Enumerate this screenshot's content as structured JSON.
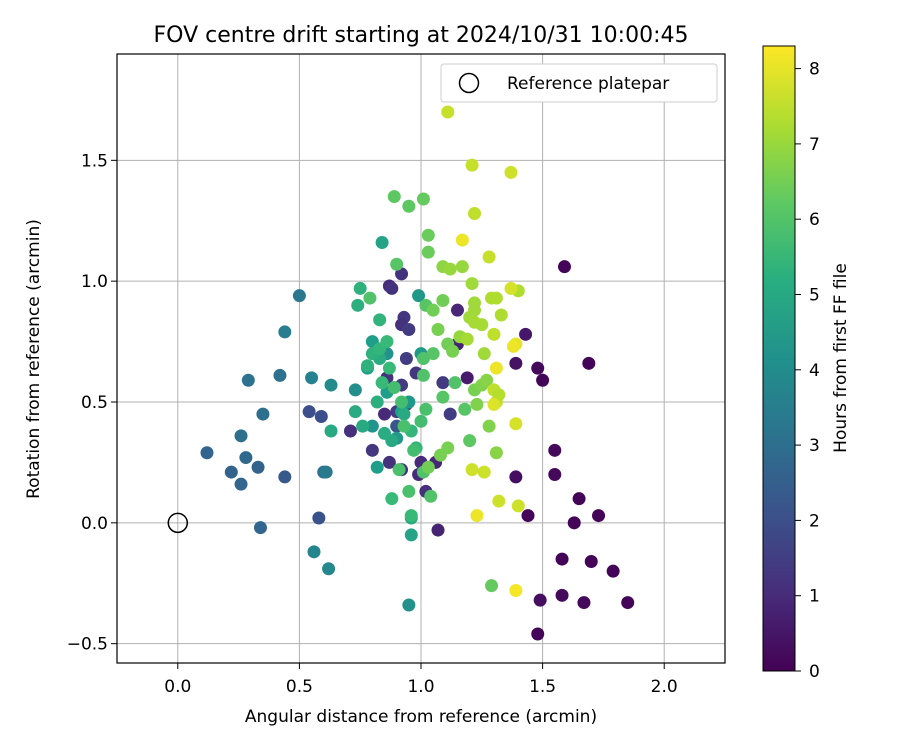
{
  "chart_data": {
    "type": "scatter",
    "title": "FOV centre drift starting at 2024/10/31 10:00:45",
    "xlabel": "Angular distance from reference (arcmin)",
    "ylabel": "Rotation from reference (arcmin)",
    "xlim": [
      -0.25,
      2.25
    ],
    "ylim": [
      -0.58,
      1.94
    ],
    "xticks": [
      0.0,
      0.5,
      1.0,
      1.5,
      2.0
    ],
    "xtick_labels": [
      "0.0",
      "0.5",
      "1.0",
      "1.5",
      "2.0"
    ],
    "yticks": [
      -0.5,
      0.0,
      0.5,
      1.0,
      1.5
    ],
    "ytick_labels": [
      "−0.5",
      "0.0",
      "0.5",
      "1.0",
      "1.5"
    ],
    "grid": true,
    "legend": {
      "placement": "top-right",
      "entries": [
        "Reference platepar"
      ]
    },
    "reference": {
      "x": 0.0,
      "y": 0.0,
      "label": "Reference platepar"
    },
    "colorbar": {
      "label": "Hours from first FF file",
      "range": [
        0,
        8.3
      ],
      "ticks": [
        0,
        1,
        2,
        3,
        4,
        5,
        6,
        7,
        8
      ],
      "tick_labels": [
        "0",
        "1",
        "2",
        "3",
        "4",
        "5",
        "6",
        "7",
        "8"
      ],
      "colormap": "viridis"
    },
    "points": [
      [
        1.59,
        1.06,
        0.1
      ],
      [
        1.69,
        0.66,
        0.1
      ],
      [
        1.5,
        0.59,
        0.1
      ],
      [
        1.48,
        0.64,
        0.2
      ],
      [
        1.55,
        0.3,
        0.2
      ],
      [
        1.55,
        0.2,
        0.2
      ],
      [
        1.65,
        0.1,
        0.1
      ],
      [
        1.63,
        0.0,
        0.1
      ],
      [
        1.73,
        0.03,
        0.1
      ],
      [
        1.44,
        0.03,
        0.1
      ],
      [
        1.58,
        -0.15,
        0.1
      ],
      [
        1.7,
        -0.16,
        0.1
      ],
      [
        1.79,
        -0.2,
        0.1
      ],
      [
        1.58,
        -0.3,
        0.2
      ],
      [
        1.67,
        -0.33,
        0.2
      ],
      [
        1.85,
        -0.33,
        0.1
      ],
      [
        1.49,
        -0.32,
        0.3
      ],
      [
        1.48,
        -0.46,
        0.1
      ],
      [
        1.39,
        0.19,
        0.3
      ],
      [
        1.39,
        0.66,
        0.4
      ],
      [
        1.43,
        0.78,
        0.5
      ],
      [
        1.19,
        0.6,
        0.6
      ],
      [
        1.15,
        0.74,
        0.8
      ],
      [
        1.15,
        0.88,
        0.9
      ],
      [
        1.06,
        0.25,
        0.9
      ],
      [
        1.07,
        -0.03,
        0.8
      ],
      [
        1.0,
        0.25,
        1.0
      ],
      [
        1.02,
        0.13,
        1.1
      ],
      [
        0.99,
        0.2,
        1.0
      ],
      [
        0.92,
        0.22,
        1.1
      ],
      [
        0.87,
        0.25,
        1.2
      ],
      [
        0.85,
        0.45,
        1.0
      ],
      [
        0.86,
        0.6,
        1.2
      ],
      [
        0.8,
        0.3,
        1.3
      ],
      [
        0.71,
        0.38,
        1.1
      ],
      [
        0.87,
        0.98,
        1.0
      ],
      [
        0.88,
        0.97,
        1.2
      ],
      [
        0.92,
        1.03,
        1.2
      ],
      [
        0.93,
        0.85,
        1.3
      ],
      [
        0.92,
        0.82,
        1.2
      ],
      [
        0.95,
        0.8,
        1.4
      ],
      [
        0.94,
        0.68,
        1.5
      ],
      [
        0.92,
        0.57,
        1.4
      ],
      [
        0.98,
        0.62,
        1.3
      ],
      [
        1.09,
        0.58,
        1.4
      ],
      [
        1.12,
        0.45,
        1.5
      ],
      [
        0.9,
        0.46,
        1.4
      ],
      [
        0.94,
        0.49,
        1.6
      ],
      [
        0.9,
        0.4,
        2.2
      ],
      [
        0.59,
        0.44,
        2.0
      ],
      [
        0.54,
        0.46,
        2.0
      ],
      [
        0.58,
        0.02,
        2.1
      ],
      [
        0.44,
        0.19,
        2.3
      ],
      [
        0.34,
        -0.02,
        2.7
      ],
      [
        0.33,
        0.23,
        2.6
      ],
      [
        0.26,
        0.16,
        2.7
      ],
      [
        0.22,
        0.21,
        2.6
      ],
      [
        0.12,
        0.29,
        2.7
      ],
      [
        0.28,
        0.27,
        2.8
      ],
      [
        0.26,
        0.36,
        3.0
      ],
      [
        0.35,
        0.45,
        3.0
      ],
      [
        0.42,
        0.61,
        3.1
      ],
      [
        0.29,
        0.59,
        3.2
      ],
      [
        0.6,
        0.21,
        3.0
      ],
      [
        0.61,
        0.21,
        3.4
      ],
      [
        0.5,
        0.94,
        3.3
      ],
      [
        0.44,
        0.79,
        3.5
      ],
      [
        0.55,
        0.6,
        3.7
      ],
      [
        0.63,
        0.57,
        4.0
      ],
      [
        0.62,
        -0.19,
        3.9
      ],
      [
        0.56,
        -0.12,
        3.8
      ],
      [
        0.95,
        -0.34,
        4.2
      ],
      [
        0.73,
        0.55,
        4.1
      ],
      [
        0.8,
        0.4,
        4.3
      ],
      [
        0.9,
        0.35,
        4.4
      ],
      [
        0.95,
        0.5,
        4.4
      ],
      [
        1.0,
        0.7,
        4.5
      ],
      [
        0.99,
        0.94,
        4.4
      ],
      [
        0.86,
        0.7,
        4.2
      ],
      [
        0.92,
        0.46,
        4.6
      ],
      [
        0.86,
        0.54,
        4.6
      ],
      [
        0.78,
        0.64,
        4.6
      ],
      [
        0.8,
        0.75,
        4.6
      ],
      [
        0.84,
        1.16,
        4.8
      ],
      [
        0.82,
        0.23,
        4.6
      ],
      [
        0.93,
        0.45,
        5.0
      ],
      [
        0.88,
        0.34,
        5.0
      ],
      [
        0.96,
        -0.05,
        4.8
      ],
      [
        0.96,
        0.02,
        5.0
      ],
      [
        0.63,
        0.38,
        5.0
      ],
      [
        0.73,
        0.46,
        5.1
      ],
      [
        0.76,
        0.4,
        5.0
      ],
      [
        0.85,
        0.37,
        5.1
      ],
      [
        0.82,
        0.5,
        5.2
      ],
      [
        0.83,
        0.68,
        5.1
      ],
      [
        0.83,
        0.84,
        5.4
      ],
      [
        0.78,
        0.65,
        5.3
      ],
      [
        0.74,
        0.9,
        5.2
      ],
      [
        0.75,
        0.97,
        5.3
      ],
      [
        0.8,
        0.7,
        5.3
      ],
      [
        0.83,
        0.72,
        5.5
      ],
      [
        0.88,
        0.1,
        5.6
      ],
      [
        0.96,
        0.38,
        5.5
      ],
      [
        0.96,
        0.03,
        5.6
      ],
      [
        0.98,
        0.31,
        5.5
      ],
      [
        0.84,
        0.58,
        5.6
      ],
      [
        0.86,
        0.75,
        5.6
      ],
      [
        0.87,
        0.64,
        5.6
      ],
      [
        0.89,
        0.56,
        5.8
      ],
      [
        0.92,
        0.5,
        5.8
      ],
      [
        0.91,
        0.22,
        5.9
      ],
      [
        0.93,
        0.4,
        5.9
      ],
      [
        0.97,
        0.3,
        5.8
      ],
      [
        0.95,
        0.13,
        5.9
      ],
      [
        1.0,
        0.42,
        5.8
      ],
      [
        1.02,
        0.47,
        5.9
      ],
      [
        1.01,
        0.21,
        6.0
      ],
      [
        1.04,
        0.11,
        6.0
      ],
      [
        1.01,
        0.61,
        6.0
      ],
      [
        1.05,
        0.7,
        6.1
      ],
      [
        1.01,
        0.68,
        6.0
      ],
      [
        1.02,
        0.9,
        6.1
      ],
      [
        1.09,
        0.52,
        6.1
      ],
      [
        1.14,
        0.58,
        6.0
      ],
      [
        1.18,
        0.47,
        6.1
      ],
      [
        1.2,
        0.34,
        6.2
      ],
      [
        1.29,
        -0.26,
        6.3
      ],
      [
        0.79,
        0.93,
        6.0
      ],
      [
        0.9,
        1.07,
        6.1
      ],
      [
        0.89,
        1.35,
        6.2
      ],
      [
        0.95,
        1.31,
        6.2
      ],
      [
        1.01,
        1.34,
        6.3
      ],
      [
        1.03,
        1.19,
        6.4
      ],
      [
        1.03,
        1.12,
        6.4
      ],
      [
        1.05,
        0.88,
        6.5
      ],
      [
        1.07,
        0.8,
        6.6
      ],
      [
        1.11,
        0.74,
        6.5
      ],
      [
        1.09,
        0.92,
        6.5
      ],
      [
        1.13,
        0.71,
        6.6
      ],
      [
        1.03,
        0.23,
        6.5
      ],
      [
        1.08,
        0.28,
        6.6
      ],
      [
        1.11,
        0.31,
        6.6
      ],
      [
        1.22,
        0.55,
        6.6
      ],
      [
        1.23,
        0.49,
        6.7
      ],
      [
        1.28,
        0.4,
        6.7
      ],
      [
        1.25,
        0.57,
        6.7
      ],
      [
        1.27,
        0.59,
        6.8
      ],
      [
        1.31,
        0.29,
        6.8
      ],
      [
        1.09,
        1.06,
        6.9
      ],
      [
        1.12,
        1.05,
        7.0
      ],
      [
        1.17,
        1.06,
        7.0
      ],
      [
        1.21,
        0.99,
        7.1
      ],
      [
        1.22,
        0.91,
        7.1
      ],
      [
        1.2,
        0.85,
        7.1
      ],
      [
        1.16,
        0.77,
        7.0
      ],
      [
        1.19,
        0.76,
        7.2
      ],
      [
        1.22,
        0.83,
        7.2
      ],
      [
        1.25,
        0.82,
        7.2
      ],
      [
        1.22,
        0.88,
        7.1
      ],
      [
        1.26,
        0.7,
        7.1
      ],
      [
        1.29,
        0.93,
        7.3
      ],
      [
        1.33,
        0.86,
        7.3
      ],
      [
        1.31,
        0.93,
        7.3
      ],
      [
        1.4,
        0.96,
        7.3
      ],
      [
        1.3,
        0.78,
        7.5
      ],
      [
        1.31,
        0.5,
        7.5
      ],
      [
        1.3,
        0.55,
        7.5
      ],
      [
        1.32,
        0.53,
        7.4
      ],
      [
        1.28,
        1.1,
        7.6
      ],
      [
        1.22,
        1.28,
        7.5
      ],
      [
        1.21,
        1.48,
        7.6
      ],
      [
        1.37,
        1.45,
        7.7
      ],
      [
        1.11,
        1.7,
        7.6
      ],
      [
        1.21,
        0.22,
        7.7
      ],
      [
        1.26,
        0.21,
        7.7
      ],
      [
        1.32,
        0.09,
        7.7
      ],
      [
        1.4,
        0.07,
        7.7
      ],
      [
        1.39,
        0.41,
        7.8
      ],
      [
        1.3,
        0.49,
        7.9
      ],
      [
        1.37,
        0.97,
        7.8
      ],
      [
        1.39,
        0.74,
        8.0
      ],
      [
        1.38,
        0.73,
        8.1
      ],
      [
        1.31,
        0.64,
        8.1
      ],
      [
        1.17,
        1.17,
        8.1
      ],
      [
        1.23,
        0.03,
        8.1
      ],
      [
        1.39,
        -0.28,
        8.2
      ]
    ]
  }
}
